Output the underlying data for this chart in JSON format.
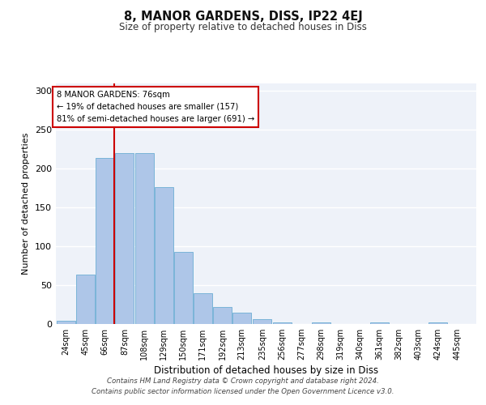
{
  "title": "8, MANOR GARDENS, DISS, IP22 4EJ",
  "subtitle": "Size of property relative to detached houses in Diss",
  "xlabel": "Distribution of detached houses by size in Diss",
  "ylabel": "Number of detached properties",
  "categories": [
    "24sqm",
    "45sqm",
    "66sqm",
    "87sqm",
    "108sqm",
    "129sqm",
    "150sqm",
    "171sqm",
    "192sqm",
    "213sqm",
    "235sqm",
    "256sqm",
    "277sqm",
    "298sqm",
    "319sqm",
    "340sqm",
    "361sqm",
    "382sqm",
    "403sqm",
    "424sqm",
    "445sqm"
  ],
  "bar_values": [
    4,
    64,
    214,
    220,
    220,
    176,
    93,
    40,
    22,
    15,
    6,
    2,
    0,
    2,
    0,
    0,
    2,
    0,
    0,
    2,
    0
  ],
  "bar_color": "#aec6e8",
  "bar_edge_color": "#7ab4d8",
  "vline_x": 76,
  "vline_color": "#cc0000",
  "annotation_text": "8 MANOR GARDENS: 76sqm\n← 19% of detached houses are smaller (157)\n81% of semi-detached houses are larger (691) →",
  "annotation_box_color": "#ffffff",
  "annotation_box_edge_color": "#cc0000",
  "ylim": [
    0,
    310
  ],
  "yticks": [
    0,
    50,
    100,
    150,
    200,
    250,
    300
  ],
  "background_color": "#eef2f9",
  "grid_color": "#ffffff",
  "footer": "Contains HM Land Registry data © Crown copyright and database right 2024.\nContains public sector information licensed under the Open Government Licence v3.0.",
  "bin_centers": [
    24,
    45,
    66,
    87,
    108,
    129,
    150,
    171,
    192,
    213,
    235,
    256,
    277,
    298,
    319,
    340,
    361,
    382,
    403,
    424,
    445
  ],
  "bin_width": 20
}
